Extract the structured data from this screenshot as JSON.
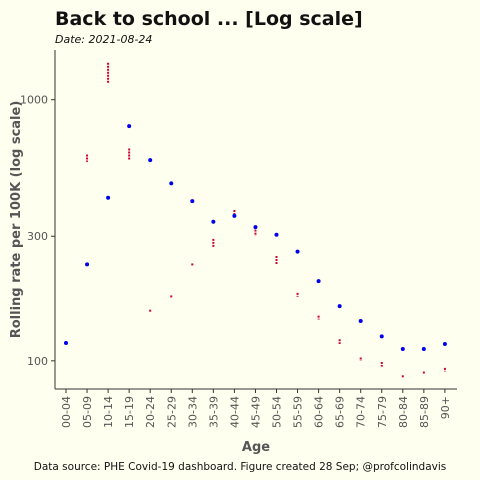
{
  "chart_data": {
    "type": "scatter",
    "title": "Back to school ... [Log scale]",
    "subtitle": "Date: 2021-08-24",
    "caption": "Data source: PHE Covid-19 dashboard. Figure created 28 Sep; @profcolindavis",
    "xlabel": "Age",
    "ylabel": "Rolling rate per 100K (log scale)",
    "y_scale": "log",
    "ylim": [
      78,
      1550
    ],
    "yticks": [
      100,
      300,
      1000
    ],
    "grid": false,
    "categories": [
      "00-04",
      "05-09",
      "10-14",
      "15-19",
      "20-24",
      "25-29",
      "30-34",
      "35-39",
      "40-44",
      "45-49",
      "50-54",
      "55-59",
      "60-64",
      "65-69",
      "70-74",
      "75-79",
      "80-84",
      "85-89",
      "90+"
    ],
    "series": [
      {
        "color": "#0000ee",
        "marker": "point",
        "values": [
          117,
          234,
          421,
          792,
          587,
          478,
          409,
          341,
          359,
          325,
          304,
          262,
          202,
          162,
          142,
          124,
          111,
          111,
          116
        ]
      },
      {
        "color": "#cc0033",
        "marker": "vertical-segment",
        "ranges": [
          [
            116,
            119
          ],
          [
            578,
            617
          ],
          [
            1155,
            1385
          ],
          [
            589,
            650
          ],
          [
            153,
            157
          ],
          [
            174,
            178
          ],
          [
            230,
            236
          ],
          [
            273,
            293
          ],
          [
            361,
            378
          ],
          [
            301,
            318
          ],
          [
            233,
            252
          ],
          [
            176,
            182
          ],
          [
            144,
            149
          ],
          [
            116,
            121
          ],
          [
            100,
            103
          ],
          [
            95,
            99
          ],
          [
            86,
            88
          ],
          [
            89,
            91
          ],
          [
            91,
            94
          ]
        ]
      }
    ]
  }
}
